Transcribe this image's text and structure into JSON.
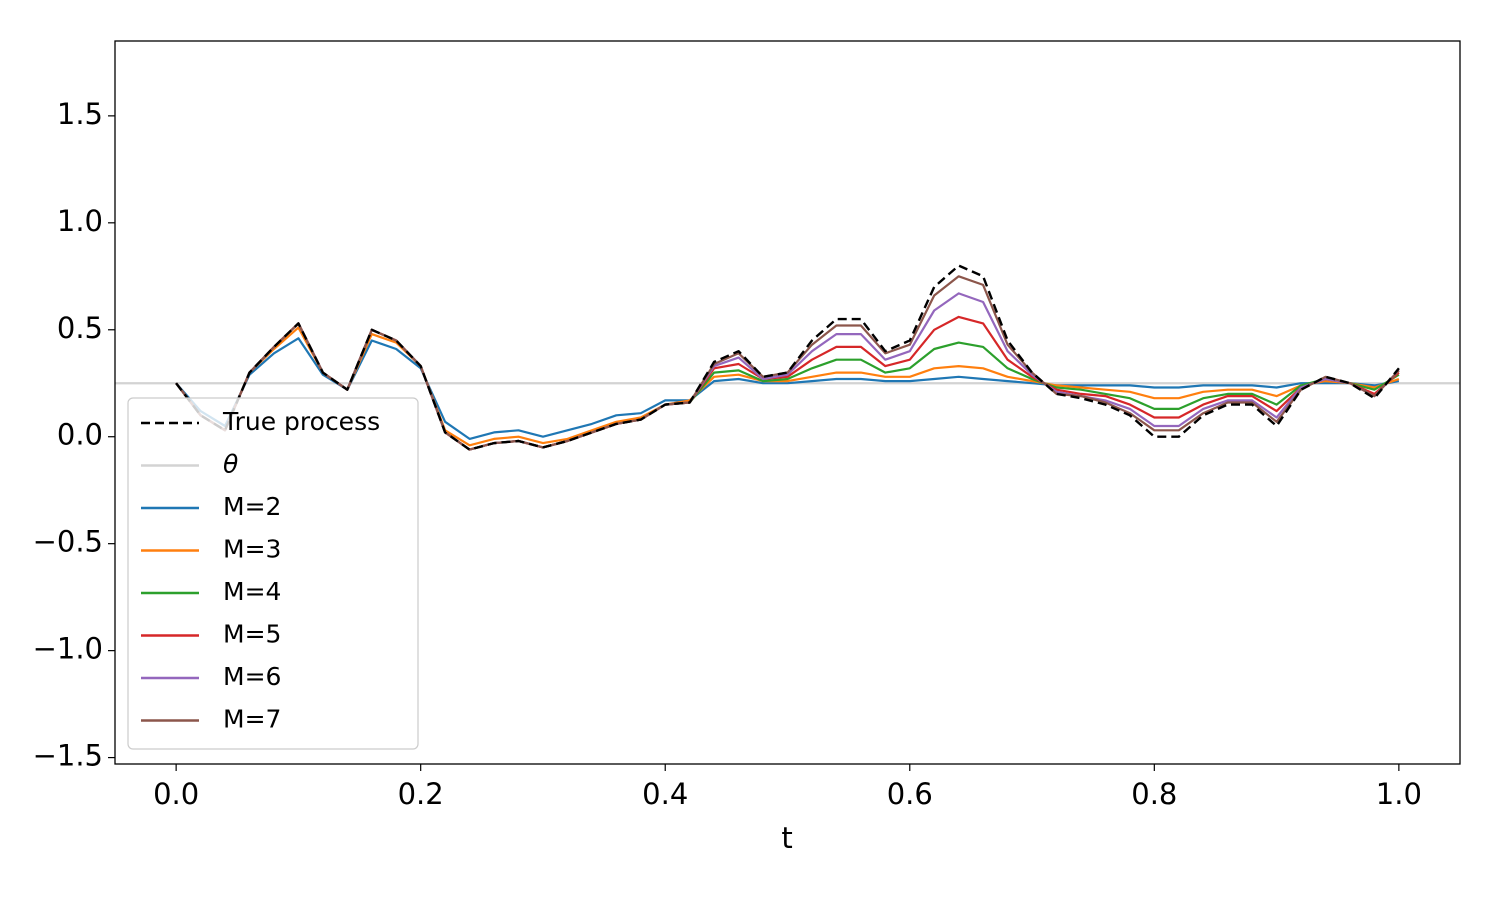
{
  "chart_data": {
    "type": "line",
    "xlabel": "t",
    "x": [
      0,
      0.02,
      0.04,
      0.06,
      0.08,
      0.1,
      0.12,
      0.14,
      0.16,
      0.18,
      0.2,
      0.22,
      0.24,
      0.26,
      0.28,
      0.3,
      0.32,
      0.34,
      0.36,
      0.38,
      0.4,
      0.42,
      0.44,
      0.46,
      0.48,
      0.5,
      0.52,
      0.54,
      0.56,
      0.58,
      0.6,
      0.62,
      0.64,
      0.66,
      0.68,
      0.7,
      0.72,
      0.74,
      0.76,
      0.78,
      0.8,
      0.82,
      0.84,
      0.86,
      0.88,
      0.9,
      0.92,
      0.94,
      0.96,
      0.98,
      1
    ],
    "xlim": [
      -0.05,
      1.05
    ],
    "ylim": [
      -1.53,
      1.85
    ],
    "xticks": [
      {
        "value": 0,
        "label": "0.0"
      },
      {
        "value": 0.2,
        "label": "0.2"
      },
      {
        "value": 0.4,
        "label": "0.4"
      },
      {
        "value": 0.6,
        "label": "0.6"
      },
      {
        "value": 0.8,
        "label": "0.8"
      },
      {
        "value": 1,
        "label": "1.0"
      }
    ],
    "yticks": [
      {
        "value": -1.5,
        "label": "−1.5"
      },
      {
        "value": -1,
        "label": "−1.0"
      },
      {
        "value": -0.5,
        "label": "−0.5"
      },
      {
        "value": 0,
        "label": "0.0"
      },
      {
        "value": 0.5,
        "label": "0.5"
      },
      {
        "value": 1,
        "label": "1.0"
      },
      {
        "value": 1.5,
        "label": "1.5"
      }
    ],
    "legend": "lower left",
    "series": [
      {
        "name": "True process",
        "color": "#000000",
        "dashed": true,
        "values": [
          0.25,
          0.1,
          0.03,
          0.3,
          0.42,
          0.53,
          0.3,
          0.22,
          0.5,
          0.45,
          0.33,
          0.02,
          -0.06,
          -0.03,
          -0.02,
          -0.05,
          -0.02,
          0.02,
          0.06,
          0.08,
          0.15,
          0.16,
          0.35,
          0.4,
          0.28,
          0.3,
          0.45,
          0.55,
          0.55,
          0.4,
          0.45,
          0.7,
          0.8,
          0.75,
          0.45,
          0.3,
          0.2,
          0.18,
          0.15,
          0.1,
          0,
          0,
          0.1,
          0.15,
          0.15,
          0.05,
          0.22,
          0.28,
          0.25,
          0.18,
          0.32
        ]
      },
      {
        "name": "θ",
        "color": "#d3d3d3",
        "value": 0.25
      },
      {
        "name": "M=2",
        "color": "#1f77b4",
        "values": [
          0.25,
          0.12,
          0.05,
          0.29,
          0.39,
          0.46,
          0.29,
          0.22,
          0.45,
          0.41,
          0.32,
          0.07,
          -0.01,
          0.02,
          0.03,
          0,
          0.03,
          0.06,
          0.1,
          0.11,
          0.17,
          0.17,
          0.26,
          0.27,
          0.25,
          0.25,
          0.26,
          0.27,
          0.27,
          0.26,
          0.26,
          0.27,
          0.28,
          0.27,
          0.26,
          0.25,
          0.24,
          0.24,
          0.24,
          0.24,
          0.23,
          0.23,
          0.24,
          0.24,
          0.24,
          0.23,
          0.25,
          0.25,
          0.25,
          0.24,
          0.26
        ]
      },
      {
        "name": "M=3",
        "color": "#ff7f0e",
        "values": [
          0.25,
          0.1,
          0.03,
          0.3,
          0.41,
          0.51,
          0.3,
          0.22,
          0.48,
          0.44,
          0.33,
          0.03,
          -0.04,
          -0.01,
          0,
          -0.03,
          -0.01,
          0.03,
          0.07,
          0.09,
          0.15,
          0.17,
          0.28,
          0.29,
          0.26,
          0.26,
          0.28,
          0.3,
          0.3,
          0.28,
          0.28,
          0.32,
          0.33,
          0.32,
          0.28,
          0.26,
          0.24,
          0.23,
          0.22,
          0.21,
          0.18,
          0.18,
          0.21,
          0.22,
          0.22,
          0.19,
          0.24,
          0.26,
          0.25,
          0.23,
          0.27
        ]
      },
      {
        "name": "M=4",
        "color": "#2ca02c",
        "values": [
          0.25,
          0.1,
          0.03,
          0.3,
          0.42,
          0.53,
          0.3,
          0.22,
          0.5,
          0.45,
          0.33,
          0.02,
          -0.06,
          -0.03,
          -0.02,
          -0.05,
          -0.02,
          0.02,
          0.06,
          0.08,
          0.15,
          0.16,
          0.3,
          0.31,
          0.26,
          0.27,
          0.32,
          0.36,
          0.36,
          0.3,
          0.32,
          0.41,
          0.44,
          0.42,
          0.32,
          0.27,
          0.23,
          0.22,
          0.2,
          0.18,
          0.13,
          0.13,
          0.18,
          0.2,
          0.2,
          0.15,
          0.24,
          0.27,
          0.25,
          0.22,
          0.29
        ]
      },
      {
        "name": "M=5",
        "color": "#d62728",
        "values": [
          0.25,
          0.1,
          0.03,
          0.3,
          0.42,
          0.53,
          0.3,
          0.22,
          0.5,
          0.45,
          0.33,
          0.02,
          -0.06,
          -0.03,
          -0.02,
          -0.05,
          -0.02,
          0.02,
          0.06,
          0.08,
          0.15,
          0.16,
          0.32,
          0.34,
          0.27,
          0.28,
          0.36,
          0.42,
          0.42,
          0.33,
          0.36,
          0.5,
          0.56,
          0.53,
          0.36,
          0.28,
          0.22,
          0.2,
          0.19,
          0.15,
          0.09,
          0.09,
          0.15,
          0.19,
          0.19,
          0.12,
          0.23,
          0.27,
          0.25,
          0.2,
          0.3
        ]
      },
      {
        "name": "M=6",
        "color": "#9467bd",
        "values": [
          0.25,
          0.1,
          0.03,
          0.3,
          0.42,
          0.53,
          0.3,
          0.22,
          0.5,
          0.45,
          0.33,
          0.02,
          -0.06,
          -0.03,
          -0.02,
          -0.05,
          -0.02,
          0.02,
          0.06,
          0.08,
          0.15,
          0.16,
          0.33,
          0.37,
          0.27,
          0.29,
          0.4,
          0.48,
          0.48,
          0.36,
          0.4,
          0.59,
          0.67,
          0.63,
          0.4,
          0.29,
          0.21,
          0.19,
          0.17,
          0.13,
          0.05,
          0.05,
          0.13,
          0.17,
          0.17,
          0.09,
          0.23,
          0.27,
          0.25,
          0.19,
          0.31
        ]
      },
      {
        "name": "M=7",
        "color": "#8c564b",
        "values": [
          0.25,
          0.1,
          0.03,
          0.3,
          0.42,
          0.53,
          0.3,
          0.22,
          0.5,
          0.45,
          0.33,
          0.02,
          -0.06,
          -0.03,
          -0.02,
          -0.05,
          -0.02,
          0.02,
          0.06,
          0.08,
          0.15,
          0.16,
          0.34,
          0.39,
          0.28,
          0.3,
          0.43,
          0.52,
          0.52,
          0.39,
          0.43,
          0.66,
          0.75,
          0.71,
          0.43,
          0.3,
          0.2,
          0.19,
          0.16,
          0.11,
          0.03,
          0.03,
          0.11,
          0.16,
          0.16,
          0.07,
          0.22,
          0.28,
          0.25,
          0.19,
          0.31
        ]
      }
    ]
  }
}
